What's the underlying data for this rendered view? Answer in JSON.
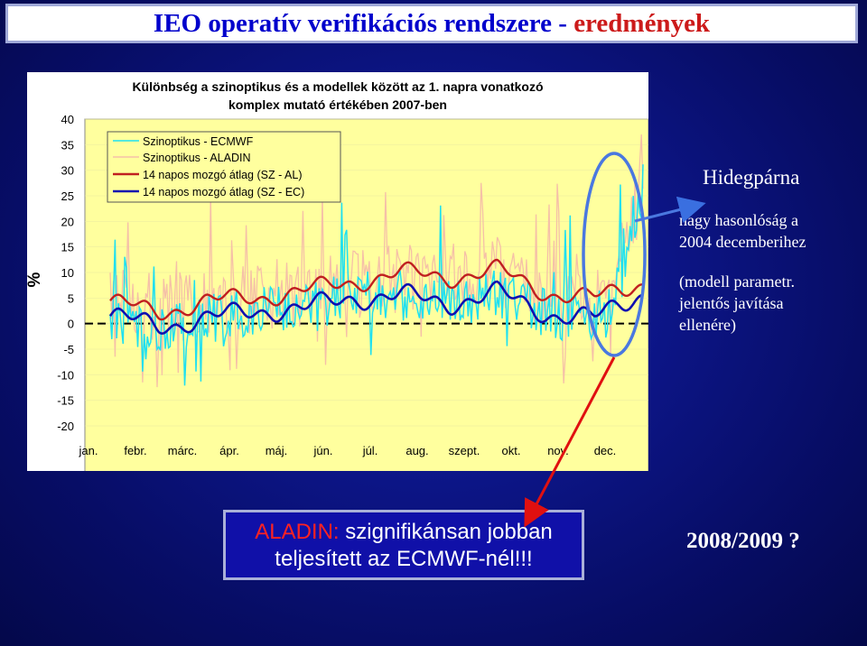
{
  "slide": {
    "title_main": "IEO operatív verifikációs rendszere - ",
    "title_accent": "eredmények"
  },
  "chart_data": {
    "type": "line",
    "title_line1": "Különbség a szinoptikus és a modellek között az 1. napra vonatkozó",
    "title_line2": "komplex mutató értékében 2007-ben",
    "ylabel": "%",
    "ylim": [
      -20,
      40
    ],
    "yticks": [
      40,
      35,
      30,
      25,
      20,
      15,
      10,
      5,
      0,
      -5,
      -10,
      -15,
      -20
    ],
    "categories": [
      "jan.",
      "febr.",
      "márc.",
      "ápr.",
      "máj.",
      "jún.",
      "júl.",
      "aug.",
      "szept.",
      "okt.",
      "nov.",
      "dec."
    ],
    "grid": true,
    "legend_position": "top-left",
    "colors": {
      "ecmwf": "#1fe0f0",
      "aladin": "#f5c0a8",
      "ma_al": "#c02020",
      "ma_ec": "#1010b0",
      "plot_bg": "#ffff9e",
      "zero_line": "#000000"
    },
    "series": [
      {
        "name": "Szinoptikus - ECMWF",
        "key": "ecmwf"
      },
      {
        "name": "Szinoptikus - ALADIN",
        "key": "aladin"
      },
      {
        "name": "14 napos mozgó átlag (SZ - AL)",
        "key": "ma_al",
        "monthly_values": [
          4.5,
          2.0,
          4.5,
          5.0,
          6.5,
          8.0,
          10.0,
          9.0,
          10.5,
          6.0,
          5.0,
          8.0
        ]
      },
      {
        "name": "14 napos mozgó átlag (SZ - EC)",
        "key": "ma_ec",
        "monthly_values": [
          1.5,
          -0.5,
          1.0,
          2.5,
          3.0,
          5.0,
          5.5,
          4.0,
          6.0,
          2.0,
          1.0,
          6.0
        ]
      }
    ]
  },
  "side": {
    "title": "Hidegpárna",
    "p1_line1": "nagy hasonlóság a",
    "p1_line2": "2004 decemberihez",
    "p2_line1": "(modell parametr.",
    "p2_line2": "jelentős javítása",
    "p2_line3": "ellenére)"
  },
  "bottom": {
    "highlight": "ALADIN:",
    "text_line1": " szignifikánsan jobban",
    "text_line2": "teljesített az ECMWF-nél!!!"
  },
  "year_question": "2008/2009 ?"
}
